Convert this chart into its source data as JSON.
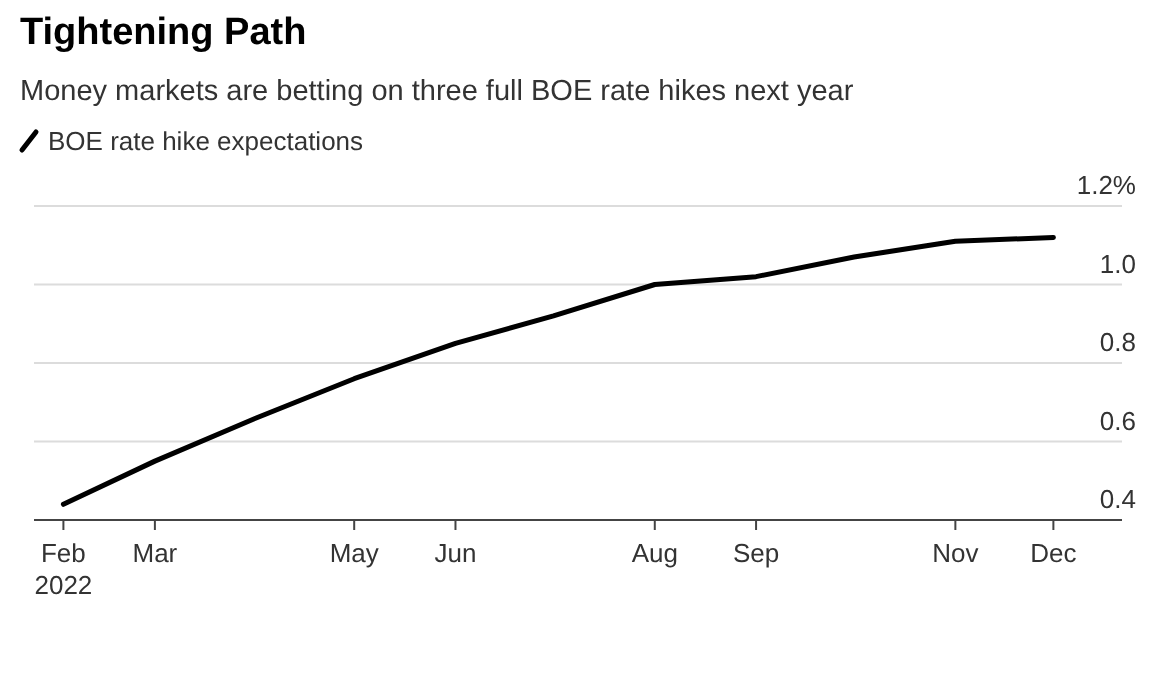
{
  "chart_data": {
    "type": "line",
    "title": "Tightening Path",
    "subtitle": "Money markets are betting on three full BOE rate hikes next year",
    "x": [
      "2022-02-01",
      "2022-03-01",
      "2022-04-01",
      "2022-05-01",
      "2022-06-01",
      "2022-07-01",
      "2022-08-01",
      "2022-09-01",
      "2022-10-01",
      "2022-11-01",
      "2022-12-01"
    ],
    "series": [
      {
        "name": "BOE rate hike expectations",
        "color": "#000000",
        "values": [
          0.44,
          0.55,
          0.66,
          0.76,
          0.85,
          0.92,
          1.0,
          1.02,
          1.07,
          1.11,
          1.12
        ]
      }
    ],
    "xlim": [
      "2022-01-23",
      "2022-12-22"
    ],
    "xticks": [
      {
        "value": "2022-02-01",
        "label": "Feb\n2022"
      },
      {
        "value": "2022-03-01",
        "label": "Mar"
      },
      {
        "value": "2022-05-01",
        "label": "May"
      },
      {
        "value": "2022-06-01",
        "label": "Jun"
      },
      {
        "value": "2022-08-01",
        "label": "Aug"
      },
      {
        "value": "2022-09-01",
        "label": "Sep"
      },
      {
        "value": "2022-11-01",
        "label": "Nov"
      },
      {
        "value": "2022-12-01",
        "label": "Dec"
      }
    ],
    "ylim": [
      0.4,
      1.2
    ],
    "yticks": [
      0.4,
      0.6,
      0.8,
      {
        "value": 1.0,
        "label": "1.0"
      },
      {
        "value": 1.2,
        "label": "1.2%"
      }
    ],
    "grid": "y",
    "legend": "top left",
    "line_style": "solid",
    "marker": "none"
  }
}
